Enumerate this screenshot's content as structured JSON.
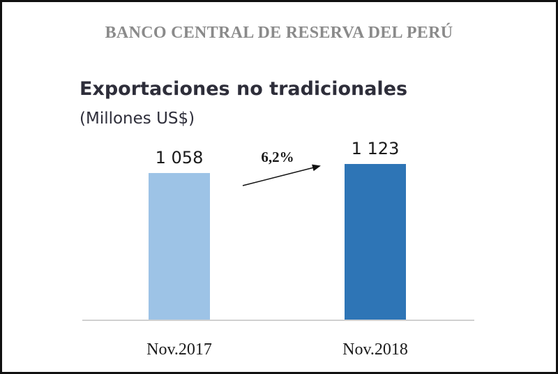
{
  "header": {
    "institution": "BANCO CENTRAL DE RESERVA DEL PERÚ"
  },
  "chart_data": {
    "type": "bar",
    "title": "Exportaciones no tradicionales",
    "subtitle": "(Millones US$)",
    "categories": [
      "Nov.2017",
      "Nov.2018"
    ],
    "values": [
      1058,
      1123
    ],
    "value_labels": [
      "1 058",
      "1 123"
    ],
    "bar_colors": [
      "#9dc3e6",
      "#2e75b6"
    ],
    "growth_annotation": "6,2%",
    "ylim": [
      0,
      1123
    ],
    "grid": false,
    "legend": "none"
  }
}
